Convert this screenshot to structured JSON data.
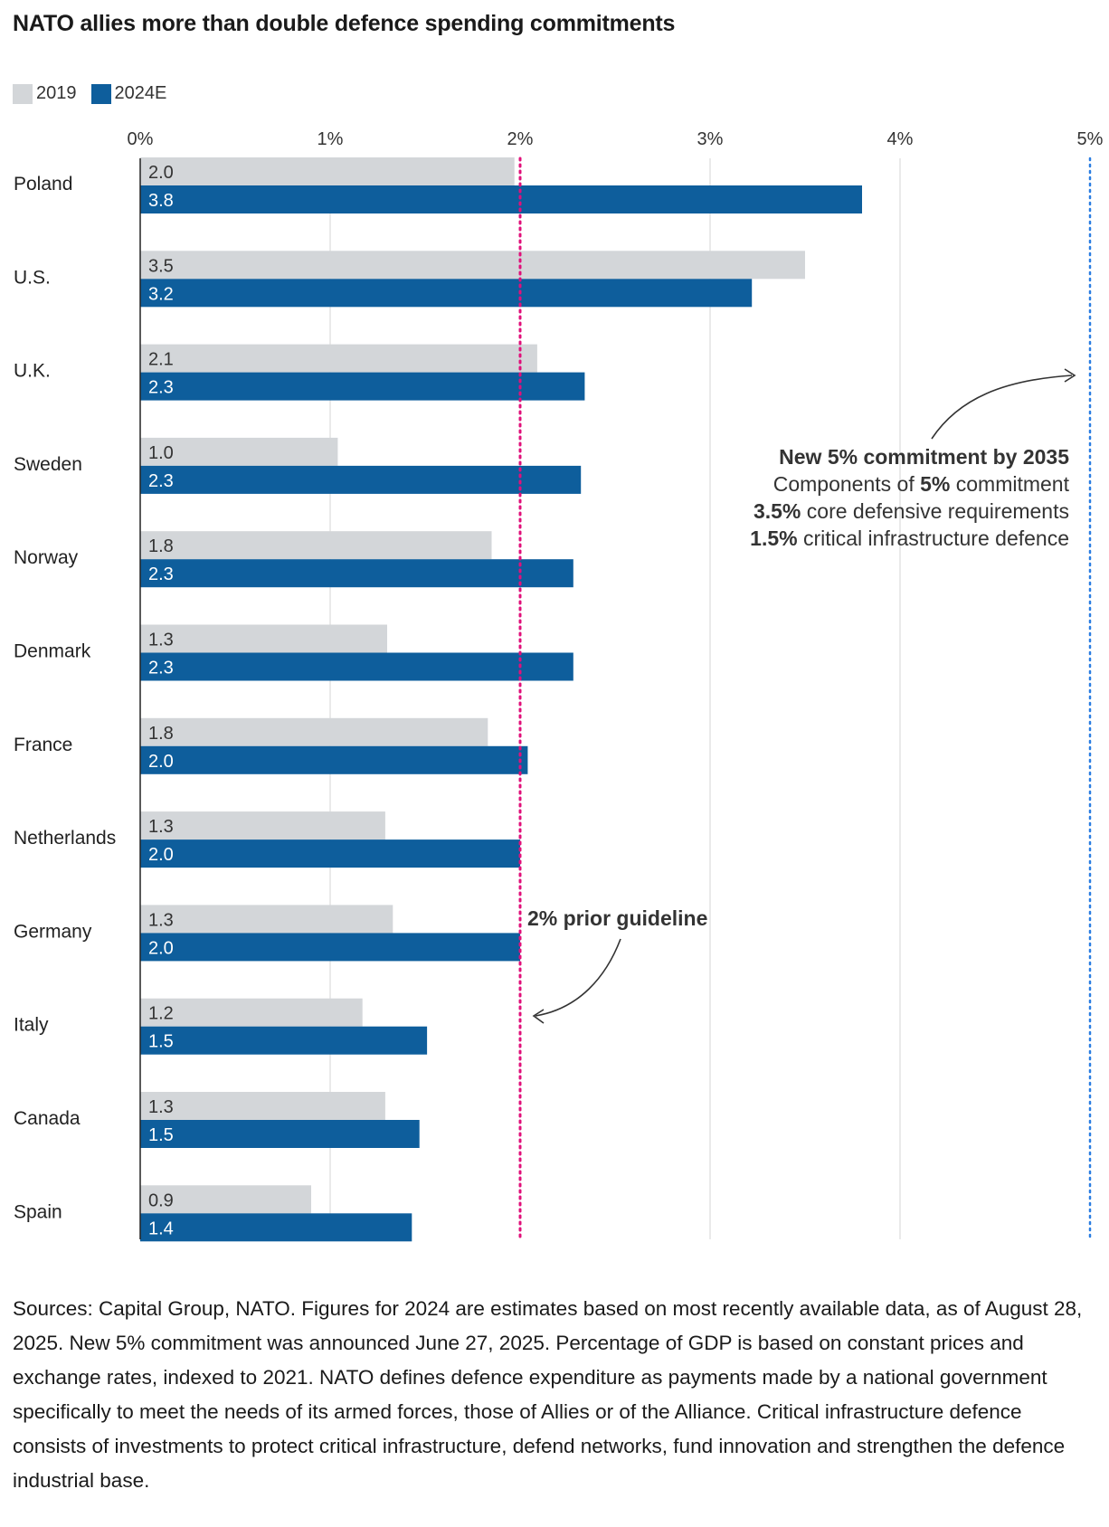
{
  "title": "NATO allies more than double defence spending commitments",
  "legend": [
    {
      "label": "2019",
      "color": "#d3d6d9"
    },
    {
      "label": "2024E",
      "color": "#0e5e9c"
    }
  ],
  "chart_data": {
    "type": "bar",
    "orientation": "horizontal",
    "categories": [
      "Poland",
      "U.S.",
      "U.K.",
      "Sweden",
      "Norway",
      "Denmark",
      "France",
      "Netherlands",
      "Germany",
      "Italy",
      "Canada",
      "Spain"
    ],
    "series": [
      {
        "name": "2019",
        "color": "#d3d6d9",
        "values": [
          1.97,
          3.5,
          2.09,
          1.04,
          1.85,
          1.3,
          1.83,
          1.29,
          1.33,
          1.17,
          1.29,
          0.9
        ],
        "labels": [
          "2.0",
          "3.5",
          "2.1",
          "1.0",
          "1.8",
          "1.3",
          "1.8",
          "1.3",
          "1.3",
          "1.2",
          "1.3",
          "0.9"
        ]
      },
      {
        "name": "2024E",
        "color": "#0e5e9c",
        "values": [
          3.8,
          3.22,
          2.34,
          2.32,
          2.28,
          2.28,
          2.04,
          2.0,
          2.0,
          1.51,
          1.47,
          1.43
        ],
        "labels": [
          "3.8",
          "3.2",
          "2.3",
          "2.3",
          "2.3",
          "2.3",
          "2.0",
          "2.0",
          "2.0",
          "1.5",
          "1.5",
          "1.4"
        ]
      }
    ],
    "xlim": [
      0,
      5
    ],
    "xticks": [
      0,
      1,
      2,
      3,
      4,
      5
    ],
    "xtick_labels": [
      "0%",
      "1%",
      "2%",
      "3%",
      "4%",
      "5%"
    ],
    "reference_lines": [
      {
        "value": 2,
        "color": "#e0107a",
        "label": "2% prior guideline"
      },
      {
        "value": 5,
        "color": "#2a7de1",
        "label": "New 5% commitment by 2035"
      }
    ]
  },
  "annotations": {
    "guideline_label": "2% prior guideline",
    "commitment_title": "New 5% commitment by 2035",
    "components": [
      {
        "bold": "",
        "pre": "Components of ",
        "mid": "5%",
        "post": " commitment"
      },
      {
        "bold": "3.5%",
        "pre": "",
        "mid": "",
        "post": " core defensive requirements"
      },
      {
        "bold": "1.5%",
        "pre": "",
        "mid": "",
        "post": " critical infrastructure defence"
      }
    ]
  },
  "footnote": "Sources: Capital Group, NATO. Figures for 2024 are estimates based on most recently available data, as of August 28, 2025. New 5% commitment was announced June 27, 2025. Percentage of GDP is based on constant prices and exchange rates, indexed to 2021. NATO defines defence expenditure as payments made by a national government specifically to meet the needs of its armed forces, those of Allies or of the Alliance. Critical infrastructure defence consists of investments to protect critical infrastructure, defend networks, fund innovation and strengthen the defence industrial base."
}
